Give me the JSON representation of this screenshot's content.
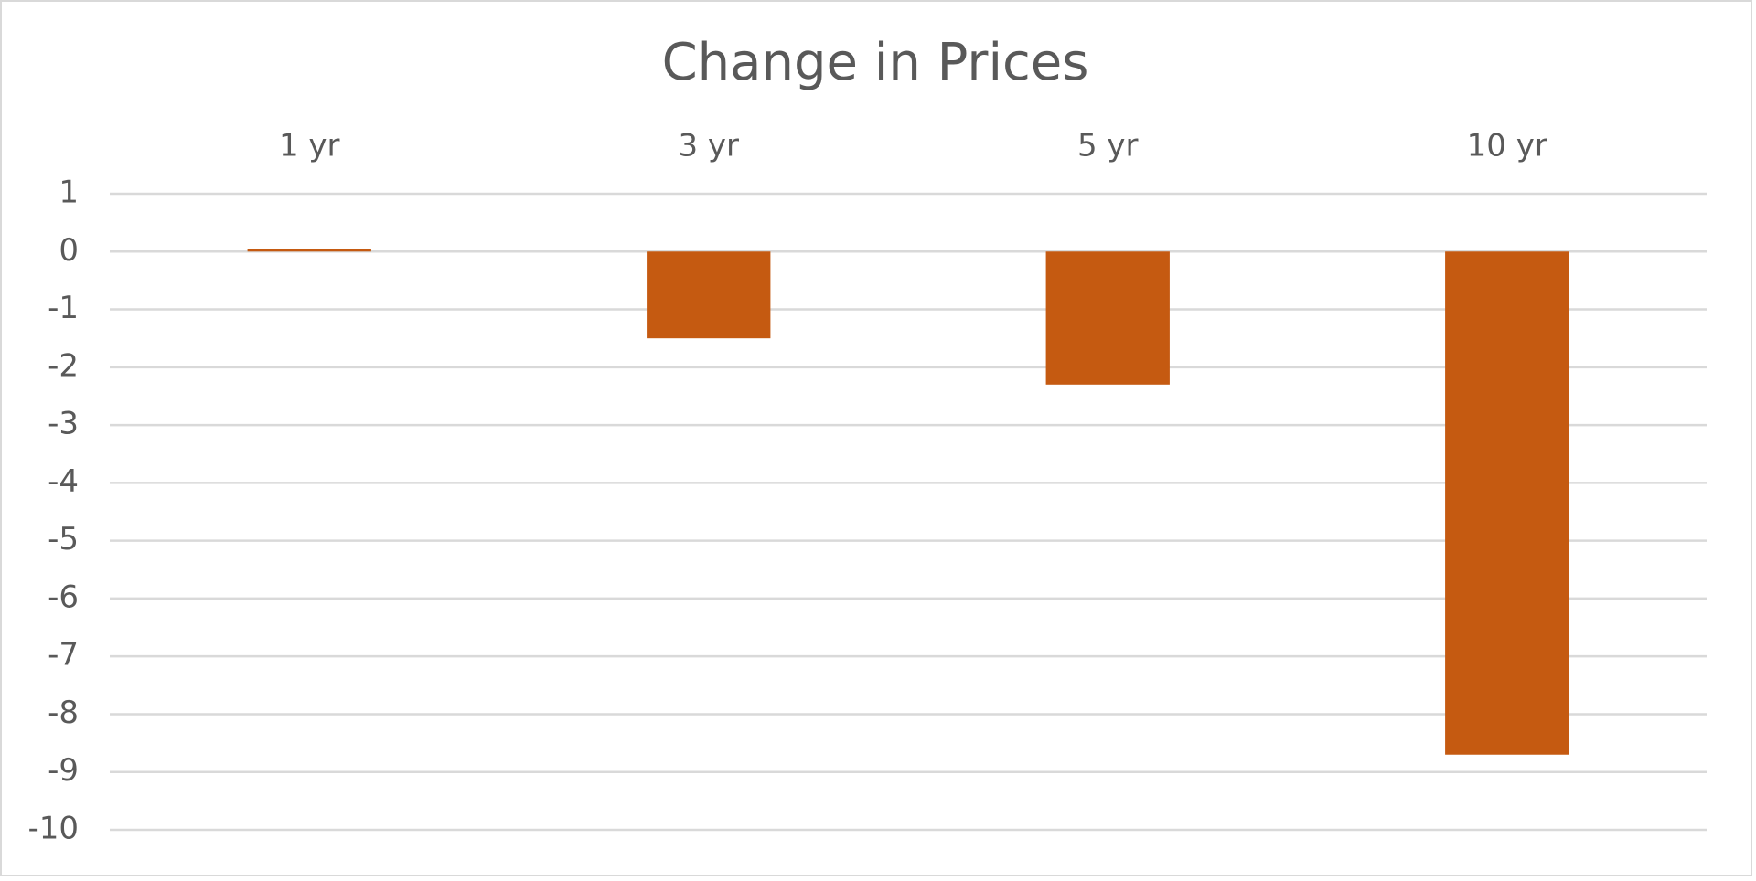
{
  "chart_data": {
    "type": "bar",
    "title": "Change in Prices",
    "categories": [
      "1 yr",
      "3 yr",
      "5 yr",
      "10 yr"
    ],
    "values": [
      0.05,
      -1.5,
      -2.3,
      -8.7
    ],
    "color": "#c55a11",
    "ylim": [
      -10,
      1
    ],
    "yticks": [
      -10,
      -9,
      -8,
      -7,
      -6,
      -5,
      -4,
      -3,
      -2,
      -1,
      0,
      1
    ],
    "grid": true
  }
}
